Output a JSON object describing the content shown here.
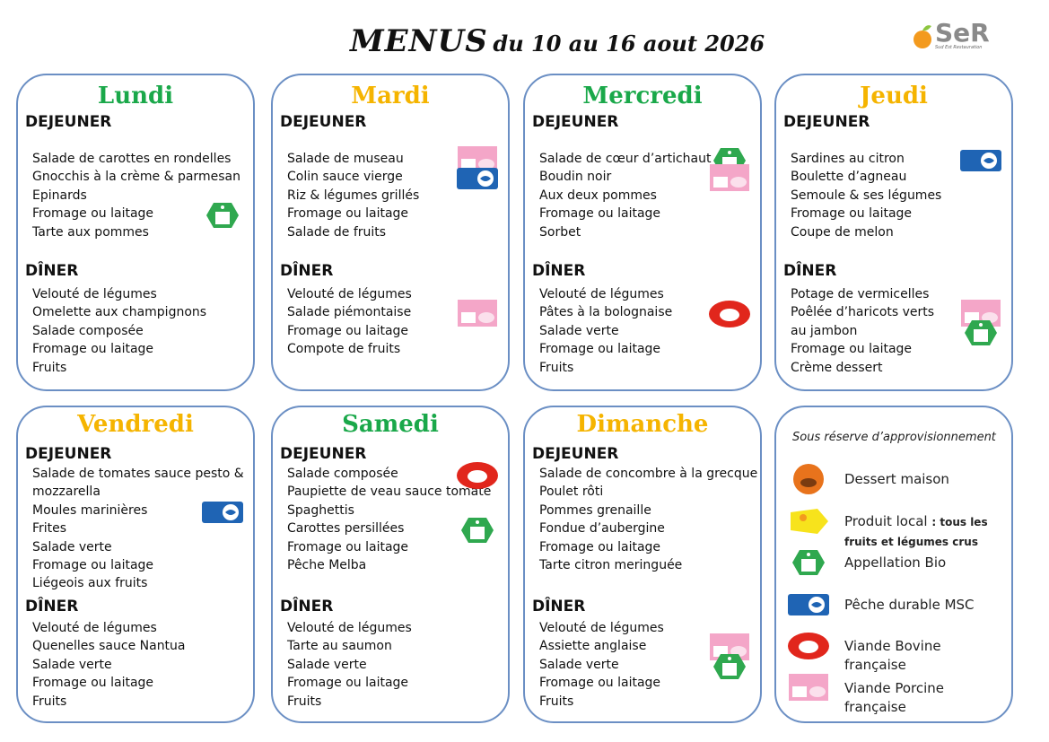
{
  "header": {
    "title_main": "MENUS",
    "title_dates": "du 10 au 16 aout 2026",
    "logo": "SeR",
    "logo_tagline": "Sud Est Restauration"
  },
  "days": [
    {
      "name": "Lundi",
      "lunch_label": "DEJEUNER",
      "lunch": [
        "Salade de carottes en rondelles",
        "Gnocchis à la crème & parmesan",
        "Epinards",
        "Fromage ou laitage",
        "Tarte aux pommes"
      ],
      "dinner_label": "DÎNER",
      "dinner": [
        "Velouté de légumes",
        "Omelette aux champignons",
        "Salade composée",
        "Fromage ou laitage",
        "Fruits"
      ]
    },
    {
      "name": "Mardi",
      "lunch_label": "DEJEUNER",
      "lunch": [
        "Salade de museau",
        "Colin sauce vierge",
        "Riz & légumes grillés",
        "Fromage ou laitage",
        "Salade de fruits"
      ],
      "dinner_label": "DÎNER",
      "dinner": [
        "Velouté de légumes",
        "Salade piémontaise",
        "Fromage ou laitage",
        "Compote de fruits"
      ]
    },
    {
      "name": "Mercredi",
      "lunch_label": "DEJEUNER",
      "lunch": [
        "Salade de cœur d’artichaut",
        "Boudin noir",
        "Aux deux pommes",
        "Fromage ou laitage",
        "Sorbet"
      ],
      "dinner_label": "DÎNER",
      "dinner": [
        "Velouté de légumes",
        "Pâtes à la bolognaise",
        "Salade verte",
        "Fromage ou laitage",
        "Fruits"
      ]
    },
    {
      "name": "Jeudi",
      "lunch_label": "DEJEUNER",
      "lunch": [
        "Sardines au citron",
        "Boulette d’agneau",
        "Semoule & ses légumes",
        "Fromage ou laitage",
        "Coupe de melon"
      ],
      "dinner_label": "DÎNER",
      "dinner": [
        "Potage de vermicelles",
        "Poêlée d’haricots verts",
        "au jambon",
        "Fromage ou laitage",
        "Crème dessert"
      ]
    },
    {
      "name": "Vendredi",
      "lunch_label": "DEJEUNER",
      "lunch": [
        "Salade de tomates sauce pesto &",
        "mozzarella",
        "Moules marinières",
        "Frites",
        "Salade verte",
        "Fromage ou laitage",
        "Liégeois aux fruits"
      ],
      "dinner_label": "DÎNER",
      "dinner": [
        "Velouté de légumes",
        "Quenelles sauce Nantua",
        "Salade verte",
        "Fromage ou laitage",
        "Fruits"
      ]
    },
    {
      "name": "Samedi",
      "lunch_label": "DEJEUNER",
      "lunch": [
        "Salade composée",
        "Paupiette de veau sauce tomate",
        "Spaghettis",
        "Carottes persillées",
        "Fromage ou laitage",
        "Pêche Melba"
      ],
      "dinner_label": "DÎNER",
      "dinner": [
        "Velouté de légumes",
        "Tarte au saumon",
        "Salade verte",
        "Fromage ou laitage",
        "Fruits"
      ]
    },
    {
      "name": "Dimanche",
      "lunch_label": "DEJEUNER",
      "lunch": [
        "Salade de concombre à la grecque",
        "Poulet rôti",
        "Pommes grenaille",
        "Fondue d’aubergine",
        "Fromage ou laitage",
        "Tarte citron meringuée"
      ],
      "dinner_label": "DÎNER",
      "dinner": [
        "Velouté de légumes",
        "Assiette anglaise",
        "Salade verte",
        "Fromage ou laitage",
        "Fruits"
      ]
    }
  ],
  "legend": {
    "title": "Sous réserve d’approvisionnement",
    "entries": [
      {
        "label": "Dessert maison"
      },
      {
        "label": "Produit local",
        "note": ": tous les fruits et légumes crus"
      },
      {
        "label": "Appellation Bio"
      },
      {
        "label": "Pêche durable MSC"
      },
      {
        "label": "Viande Bovine française"
      },
      {
        "label": "Viande Porcine française"
      }
    ]
  }
}
